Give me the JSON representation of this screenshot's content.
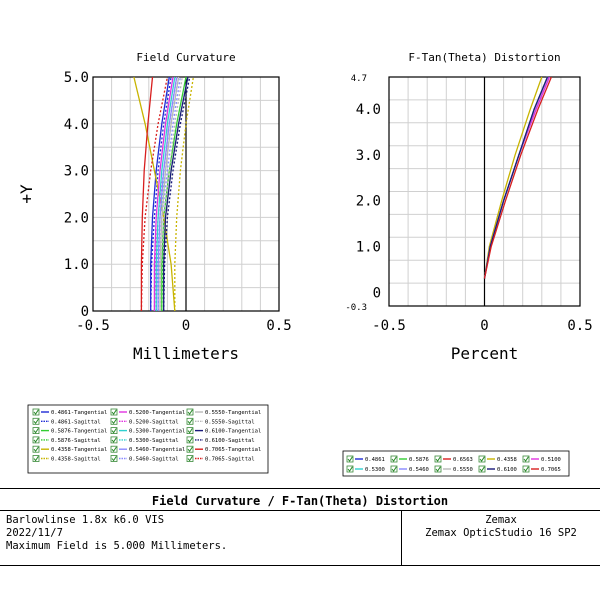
{
  "chart_data": [
    {
      "type": "line",
      "title": "Field Curvature",
      "xlabel": "Millimeters",
      "ylabel": "+Y",
      "xlim": [
        -0.5,
        0.5
      ],
      "ylim": [
        0,
        5.0
      ],
      "xticks": [
        "-0.5",
        "0",
        "0.5"
      ],
      "yticks": [
        "0",
        "1.0",
        "2.0",
        "3.0",
        "4.0",
        "5.0"
      ],
      "grid": true,
      "legend_position": "bottom-left",
      "y_samples": [
        0,
        1,
        2,
        3,
        4,
        5
      ],
      "series": [
        {
          "name": "0.4861-Tangential",
          "color": "#1f2bd6",
          "dash": false,
          "x": [
            -0.19,
            -0.19,
            -0.18,
            -0.16,
            -0.13,
            -0.09
          ]
        },
        {
          "name": "0.4861-Sagittal",
          "color": "#1f2bd6",
          "dash": true,
          "x": [
            -0.19,
            -0.185,
            -0.17,
            -0.15,
            -0.12,
            -0.08
          ]
        },
        {
          "name": "0.5876-Tangential",
          "color": "#33cc33",
          "dash": false,
          "x": [
            -0.13,
            -0.13,
            -0.12,
            -0.09,
            -0.05,
            0.0
          ]
        },
        {
          "name": "0.5876-Sagittal",
          "color": "#33cc33",
          "dash": true,
          "x": [
            -0.13,
            -0.125,
            -0.11,
            -0.08,
            -0.04,
            0.01
          ]
        },
        {
          "name": "0.4358-Tangential",
          "color": "#c8b400",
          "dash": false,
          "x": [
            -0.06,
            -0.08,
            -0.12,
            -0.17,
            -0.22,
            -0.28
          ]
        },
        {
          "name": "0.4358-Sagittal",
          "color": "#c8b400",
          "dash": true,
          "x": [
            -0.06,
            -0.06,
            -0.05,
            -0.03,
            0.0,
            0.04
          ]
        },
        {
          "name": "0.5200-Tangential",
          "color": "#e032e0",
          "dash": false,
          "x": [
            -0.17,
            -0.17,
            -0.16,
            -0.14,
            -0.11,
            -0.07
          ]
        },
        {
          "name": "0.5200-Sagittal",
          "color": "#e032e0",
          "dash": true,
          "x": [
            -0.17,
            -0.165,
            -0.15,
            -0.12,
            -0.09,
            -0.05
          ]
        },
        {
          "name": "0.5300-Tangential",
          "color": "#2fd0d0",
          "dash": false,
          "x": [
            -0.16,
            -0.16,
            -0.15,
            -0.13,
            -0.1,
            -0.06
          ]
        },
        {
          "name": "0.5300-Sagittal",
          "color": "#2fd0d0",
          "dash": true,
          "x": [
            -0.16,
            -0.155,
            -0.14,
            -0.11,
            -0.08,
            -0.04
          ]
        },
        {
          "name": "0.5460-Tangential",
          "color": "#8888ff",
          "dash": false,
          "x": [
            -0.15,
            -0.15,
            -0.14,
            -0.12,
            -0.09,
            -0.05
          ]
        },
        {
          "name": "0.5460-Sagittal",
          "color": "#8888ff",
          "dash": true,
          "x": [
            -0.15,
            -0.145,
            -0.13,
            -0.1,
            -0.07,
            -0.03
          ]
        },
        {
          "name": "0.5550-Tangential",
          "color": "#b8b8b8",
          "dash": false,
          "x": [
            -0.14,
            -0.14,
            -0.13,
            -0.11,
            -0.08,
            -0.04
          ]
        },
        {
          "name": "0.5550-Sagittal",
          "color": "#b8b8b8",
          "dash": true,
          "x": [
            -0.14,
            -0.135,
            -0.12,
            -0.09,
            -0.06,
            -0.02
          ]
        },
        {
          "name": "0.6100-Tangential",
          "color": "#1a1a7a",
          "dash": false,
          "x": [
            -0.12,
            -0.12,
            -0.11,
            -0.08,
            -0.04,
            0.01
          ]
        },
        {
          "name": "0.6100-Sagittal",
          "color": "#1a1a7a",
          "dash": true,
          "x": [
            -0.12,
            -0.115,
            -0.1,
            -0.07,
            -0.03,
            0.02
          ]
        },
        {
          "name": "0.7065-Tangential",
          "color": "#d81e1e",
          "dash": false,
          "x": [
            -0.24,
            -0.24,
            -0.235,
            -0.225,
            -0.205,
            -0.18
          ]
        },
        {
          "name": "0.7065-Sagittal",
          "color": "#d81e1e",
          "dash": true,
          "x": [
            -0.24,
            -0.235,
            -0.22,
            -0.19,
            -0.15,
            -0.1
          ]
        }
      ]
    },
    {
      "type": "line",
      "title": "F-Tan(Theta) Distortion",
      "xlabel": "Percent",
      "xlim": [
        -0.5,
        0.5
      ],
      "ylim": [
        -0.3,
        4.7
      ],
      "xticks": [
        "-0.5",
        "0",
        "0.5"
      ],
      "yticks": [
        "0",
        "1.0",
        "2.0",
        "3.0",
        "4.0"
      ],
      "ylim_labels": [
        "-0.3",
        "4.7"
      ],
      "grid": true,
      "legend_position": "bottom-right",
      "y_samples": [
        0.3,
        1.0,
        2.0,
        3.0,
        4.0,
        4.7
      ],
      "series": [
        {
          "name": "0.4861",
          "color": "#1f2bd6",
          "x": [
            0.0,
            0.03,
            0.1,
            0.18,
            0.27,
            0.34
          ]
        },
        {
          "name": "0.5876",
          "color": "#33cc33",
          "x": [
            0.0,
            0.03,
            0.1,
            0.18,
            0.26,
            0.33
          ]
        },
        {
          "name": "0.6563",
          "color": "#d81e1e",
          "x": [
            0.0,
            0.03,
            0.1,
            0.18,
            0.26,
            0.33
          ]
        },
        {
          "name": "0.4358",
          "color": "#c8b400",
          "x": [
            0.0,
            0.025,
            0.09,
            0.16,
            0.24,
            0.3
          ]
        },
        {
          "name": "0.5100",
          "color": "#e032e0",
          "x": [
            0.0,
            0.03,
            0.1,
            0.18,
            0.27,
            0.34
          ]
        },
        {
          "name": "0.5300",
          "color": "#2fd0d0",
          "x": [
            0.0,
            0.03,
            0.1,
            0.18,
            0.26,
            0.33
          ]
        },
        {
          "name": "0.5460",
          "color": "#8888ff",
          "x": [
            0.0,
            0.03,
            0.1,
            0.18,
            0.26,
            0.33
          ]
        },
        {
          "name": "0.5550",
          "color": "#b8b8b8",
          "x": [
            0.0,
            0.03,
            0.1,
            0.18,
            0.26,
            0.33
          ]
        },
        {
          "name": "0.6100",
          "color": "#1a1a7a",
          "x": [
            0.0,
            0.03,
            0.1,
            0.18,
            0.26,
            0.33
          ]
        },
        {
          "name": "0.7065",
          "color": "#d81e1e",
          "x": [
            0.0,
            0.035,
            0.11,
            0.19,
            0.28,
            0.35
          ]
        }
      ]
    }
  ],
  "footer": {
    "title": "Field Curvature / F-Tan(Theta) Distortion",
    "left_lines": [
      "Barlowlinse 1.8x k6.0 VIS",
      "2022/11/7",
      "Maximum Field is 5.000 Millimeters."
    ],
    "right_lines": [
      "Zemax",
      "Zemax OpticStudio 16 SP2"
    ]
  }
}
